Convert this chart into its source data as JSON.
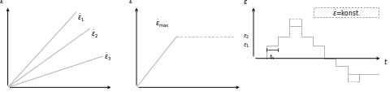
{
  "bg_color": "#ffffff",
  "line_color": "#b0b0b0",
  "text_color": "#000000",
  "fig_width": 4.8,
  "fig_height": 1.14,
  "dpi": 100,
  "arrow_color": "#000000",
  "axis_lw": 0.7,
  "data_lw": 0.7
}
